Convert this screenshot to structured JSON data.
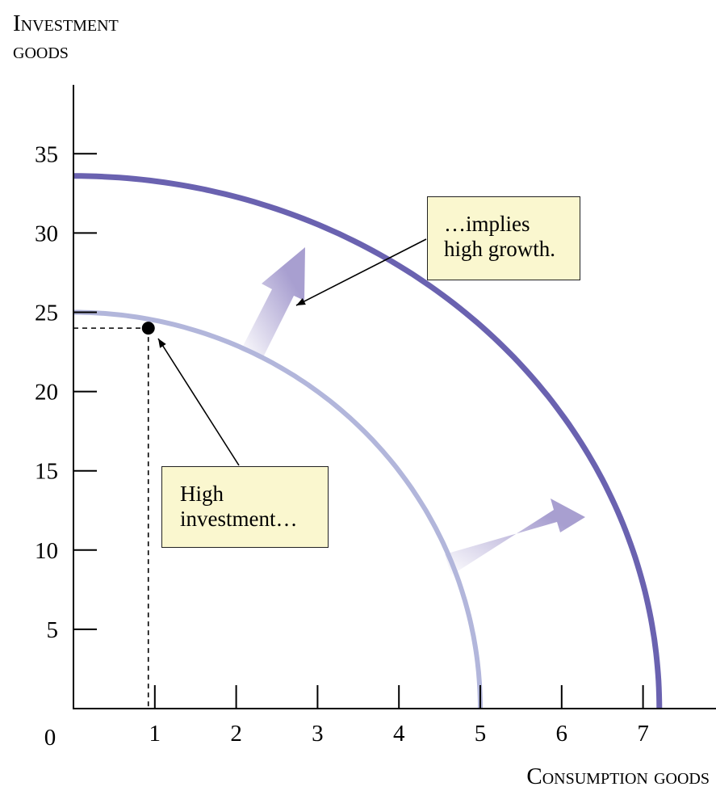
{
  "chart_data": {
    "type": "line",
    "ylabel": [
      "Investment",
      "goods"
    ],
    "xlabel": "Consumption goods",
    "origin_label": "0",
    "xlim": [
      0,
      7.8
    ],
    "ylim": [
      0,
      39
    ],
    "x_ticks": [
      "1",
      "2",
      "3",
      "4",
      "5",
      "6",
      "7"
    ],
    "y_ticks": [
      "5",
      "10",
      "15",
      "20",
      "25",
      "30",
      "35"
    ],
    "grid": false,
    "series": [
      {
        "x_intercept": 5.0,
        "y_intercept": 25.0,
        "color": "#b2b6db"
      },
      {
        "x_intercept": 7.2,
        "y_intercept": 33.6,
        "color": "#6a62b0"
      }
    ],
    "point": {
      "x": 0.92,
      "y": 24
    },
    "annotations": [
      {
        "lines": [
          "High",
          "investment…"
        ]
      },
      {
        "lines": [
          "…implies",
          "high growth."
        ]
      }
    ],
    "arrow_color": "#a89fd0"
  }
}
